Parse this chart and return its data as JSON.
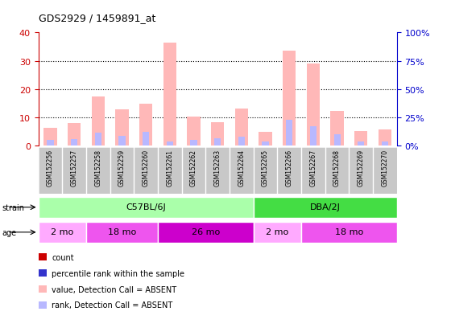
{
  "title": "GDS2929 / 1459891_at",
  "samples": [
    "GSM152256",
    "GSM152257",
    "GSM152258",
    "GSM152259",
    "GSM152260",
    "GSM152261",
    "GSM152262",
    "GSM152263",
    "GSM152264",
    "GSM152265",
    "GSM152266",
    "GSM152267",
    "GSM152268",
    "GSM152269",
    "GSM152270"
  ],
  "absent_value": [
    6.2,
    8.0,
    17.5,
    12.8,
    14.8,
    36.5,
    10.2,
    8.2,
    13.0,
    4.8,
    33.5,
    29.0,
    12.2,
    5.3,
    5.8
  ],
  "absent_rank": [
    2.0,
    2.2,
    4.5,
    3.5,
    5.0,
    1.5,
    2.0,
    2.5,
    3.2,
    1.5,
    9.0,
    7.0,
    4.0,
    1.5,
    1.5
  ],
  "count_values": [
    0,
    0,
    0,
    0,
    0,
    0,
    0,
    0,
    0,
    0,
    0,
    0,
    0,
    0,
    0
  ],
  "rank_values": [
    0,
    0,
    0,
    0,
    0,
    0,
    0,
    0,
    0,
    0,
    0,
    0,
    0,
    0,
    0
  ],
  "ylim_left": [
    0,
    40
  ],
  "ylim_right": [
    0,
    100
  ],
  "yticks_left": [
    0,
    10,
    20,
    30,
    40
  ],
  "yticks_right": [
    0,
    25,
    50,
    75,
    100
  ],
  "absent_color": "#FFB8B8",
  "absent_rank_color": "#B8B8FF",
  "count_color": "#CC0000",
  "rank_color": "#3333CC",
  "label_box_color": "#C8C8C8",
  "strain_groups": [
    {
      "label": "C57BL/6J",
      "start": 0,
      "end": 9,
      "color": "#AAFFAA"
    },
    {
      "label": "DBA/2J",
      "start": 9,
      "end": 15,
      "color": "#44DD44"
    }
  ],
  "age_groups": [
    {
      "label": "2 mo",
      "start": 0,
      "end": 2,
      "color": "#FFAAFF"
    },
    {
      "label": "18 mo",
      "start": 2,
      "end": 5,
      "color": "#EE55EE"
    },
    {
      "label": "26 mo",
      "start": 5,
      "end": 9,
      "color": "#CC00CC"
    },
    {
      "label": "2 mo",
      "start": 9,
      "end": 11,
      "color": "#FFAAFF"
    },
    {
      "label": "18 mo",
      "start": 11,
      "end": 15,
      "color": "#EE55EE"
    }
  ],
  "legend_items": [
    {
      "label": "count",
      "color": "#CC0000"
    },
    {
      "label": "percentile rank within the sample",
      "color": "#3333CC"
    },
    {
      "label": "value, Detection Call = ABSENT",
      "color": "#FFB8B8"
    },
    {
      "label": "rank, Detection Call = ABSENT",
      "color": "#B8B8FF"
    }
  ],
  "left_axis_color": "#CC0000",
  "right_axis_color": "#0000CC",
  "bar_width": 0.55
}
